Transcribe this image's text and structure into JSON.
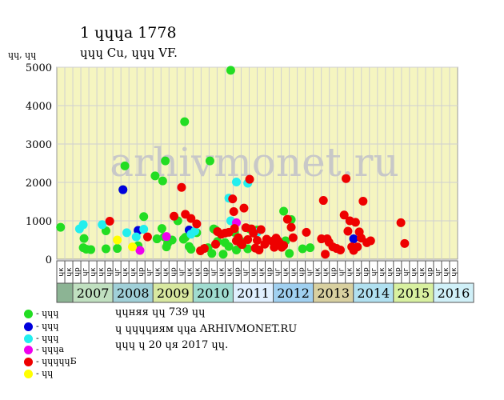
{
  "header": {
    "title": "1 ɥɥɥа 1778",
    "subtitle": "ɥɥɥ Cu, ɥɥɥ VF.",
    "y_unit": "ɥɥ, ɥɥ"
  },
  "watermark": "arhivmonet.ru",
  "colors": {
    "plot_bg": "#f5f5c0",
    "grid": "#d0d0d0",
    "watermark": "#c8c8c8",
    "first_column": "#8cb494",
    "green": "#22dd22",
    "blue": "#0000dd",
    "cyan": "#22eeee",
    "magenta": "#ee00ee",
    "red": "#ee0000",
    "yellow": "#ffff00"
  },
  "legend": [
    {
      "label": "- ɥɥɥ",
      "color": "#22dd22",
      "icon": "green-dot"
    },
    {
      "label": "- ɥɥɥ",
      "color": "#0000dd",
      "icon": "blue-dot"
    },
    {
      "label": "- ɥɥɥ",
      "color": "#22eeee",
      "icon": "cyan-dot"
    },
    {
      "label": "- ɥɥɥа",
      "color": "#ee00ee",
      "icon": "magenta-dot"
    },
    {
      "label": "- ɥɥɥɥɥБ",
      "color": "#ee0000",
      "icon": "red-dot"
    },
    {
      "label": "- ɥɥ",
      "color": "#ffff00",
      "icon": "yellow-dot"
    }
  ],
  "info": {
    "line1": "ɥɥняя ɥɥ 739 ɥɥ",
    "line2": "ɥ ɥɥɥɥиям ɥɥа ARHIVMONET.RU",
    "line3": "ɥɥɥ ɥ 20 ɥя 2017 ɥɥ."
  },
  "chart_data": {
    "type": "scatter",
    "ylim": [
      0,
      5000
    ],
    "yticks": [
      0,
      1000,
      2000,
      3000,
      4000,
      5000
    ],
    "xlim": [
      2006.0,
      2016.6
    ],
    "quarter_labels": [
      "ɥк",
      "ɥк",
      "ɥр",
      "ɥг",
      "ɥк",
      "ɥк",
      "ɥр",
      "ɥг",
      "ɥк",
      "ɥк",
      "ɥр",
      "ɥг",
      "ɥк",
      "ɥк",
      "ɥр",
      "ɥг",
      "ɥк",
      "ɥк",
      "ɥр",
      "ɥг",
      "ɥк",
      "ɥк",
      "ɥр",
      "ɥг",
      "ɥк",
      "ɥк",
      "ɥр",
      "ɥг",
      "ɥк",
      "ɥк",
      "ɥр",
      "ɥг",
      "ɥк",
      "ɥк",
      "ɥр",
      "ɥг",
      "ɥк",
      "ɥк",
      "ɥр",
      "ɥг",
      "ɥк",
      "ɥк",
      "ɥр",
      "ɥг",
      "ɥк",
      "ɥк",
      "ɥр",
      "ɥг",
      "ɥк",
      "ɥк"
    ],
    "years": [
      {
        "label": "2007",
        "color": "#c0e0c0"
      },
      {
        "label": "2008",
        "color": "#a0d0d8"
      },
      {
        "label": "2009",
        "color": "#d8e8a0"
      },
      {
        "label": "2010",
        "color": "#a0dcd0"
      },
      {
        "label": "2011",
        "color": "#e0f0ff"
      },
      {
        "label": "2012",
        "color": "#a0d0f0"
      },
      {
        "label": "2013",
        "color": "#d8d0a0"
      },
      {
        "label": "2014",
        "color": "#b0e0f0"
      },
      {
        "label": "2015",
        "color": "#d8f0a0"
      },
      {
        "label": "2016",
        "color": "#d0f0f8"
      }
    ],
    "series": [
      {
        "name": "- ɥɥɥ",
        "color": "#22dd22",
        "points": [
          [
            2006.1,
            830
          ],
          [
            2006.7,
            300
          ],
          [
            2006.72,
            540
          ],
          [
            2006.78,
            260
          ],
          [
            2006.9,
            250
          ],
          [
            2007.3,
            740
          ],
          [
            2007.3,
            270
          ],
          [
            2007.6,
            280
          ],
          [
            2007.75,
            1810
          ],
          [
            2007.8,
            2430
          ],
          [
            2008.15,
            350
          ],
          [
            2008.3,
            1110
          ],
          [
            2008.6,
            2170
          ],
          [
            2008.65,
            530
          ],
          [
            2008.78,
            800
          ],
          [
            2008.8,
            2040
          ],
          [
            2008.84,
            580
          ],
          [
            2008.87,
            2560
          ],
          [
            2008.9,
            320
          ],
          [
            2008.93,
            410
          ],
          [
            2009.05,
            500
          ],
          [
            2009.2,
            1000
          ],
          [
            2009.35,
            520
          ],
          [
            2009.38,
            3580
          ],
          [
            2009.4,
            570
          ],
          [
            2009.5,
            330
          ],
          [
            2009.55,
            260
          ],
          [
            2009.7,
            690
          ],
          [
            2010.0,
            300
          ],
          [
            2010.05,
            2560
          ],
          [
            2010.1,
            150
          ],
          [
            2010.15,
            790
          ],
          [
            2010.2,
            760
          ],
          [
            2010.25,
            460
          ],
          [
            2010.4,
            130
          ],
          [
            2010.45,
            430
          ],
          [
            2010.55,
            330
          ],
          [
            2010.6,
            4920
          ],
          [
            2010.7,
            700
          ],
          [
            2010.75,
            240
          ],
          [
            2010.85,
            480
          ],
          [
            2011.05,
            270
          ],
          [
            2011.1,
            790
          ],
          [
            2011.3,
            760
          ],
          [
            2011.85,
            440
          ],
          [
            2012.0,
            1250
          ],
          [
            2012.05,
            480
          ],
          [
            2012.15,
            150
          ],
          [
            2012.2,
            1030
          ],
          [
            2012.5,
            270
          ],
          [
            2012.7,
            300
          ]
        ]
      },
      {
        "name": "- ɥɥɥ",
        "color": "#0000dd",
        "points": [
          [
            2007.75,
            1810
          ],
          [
            2008.15,
            750
          ],
          [
            2009.5,
            760
          ],
          [
            2013.85,
            530
          ]
        ]
      },
      {
        "name": "- ɥɥɥ",
        "color": "#22eeee",
        "points": [
          [
            2006.6,
            790
          ],
          [
            2006.7,
            900
          ],
          [
            2007.2,
            900
          ],
          [
            2007.85,
            690
          ],
          [
            2008.1,
            580
          ],
          [
            2008.3,
            780
          ],
          [
            2009.55,
            650
          ],
          [
            2009.65,
            730
          ],
          [
            2010.55,
            1590
          ],
          [
            2010.6,
            1000
          ],
          [
            2010.75,
            2010
          ],
          [
            2011.05,
            1980
          ],
          [
            2011.3,
            700
          ]
        ]
      },
      {
        "name": "- ɥɥɥа",
        "color": "#ee00ee",
        "points": [
          [
            2008.2,
            230
          ],
          [
            2008.9,
            590
          ],
          [
            2010.75,
            950
          ]
        ]
      },
      {
        "name": "- ɥɥɥɥɥБ",
        "color": "#ee0000",
        "points": [
          [
            2007.4,
            990
          ],
          [
            2008.4,
            580
          ],
          [
            2009.1,
            1120
          ],
          [
            2009.3,
            1870
          ],
          [
            2009.4,
            1170
          ],
          [
            2009.55,
            1060
          ],
          [
            2009.7,
            920
          ],
          [
            2009.8,
            220
          ],
          [
            2009.9,
            280
          ],
          [
            2010.2,
            390
          ],
          [
            2010.25,
            720
          ],
          [
            2010.35,
            650
          ],
          [
            2010.45,
            680
          ],
          [
            2010.55,
            700
          ],
          [
            2010.65,
            1570
          ],
          [
            2010.68,
            1240
          ],
          [
            2010.7,
            800
          ],
          [
            2010.75,
            480
          ],
          [
            2010.8,
            560
          ],
          [
            2010.85,
            430
          ],
          [
            2010.9,
            380
          ],
          [
            2010.95,
            1330
          ],
          [
            2011.0,
            820
          ],
          [
            2011.05,
            510
          ],
          [
            2011.1,
            2080
          ],
          [
            2011.15,
            790
          ],
          [
            2011.2,
            680
          ],
          [
            2011.25,
            290
          ],
          [
            2011.3,
            490
          ],
          [
            2011.35,
            240
          ],
          [
            2011.4,
            770
          ],
          [
            2011.5,
            390
          ],
          [
            2011.55,
            520
          ],
          [
            2011.7,
            470
          ],
          [
            2011.75,
            310
          ],
          [
            2011.8,
            550
          ],
          [
            2011.85,
            480
          ],
          [
            2011.9,
            410
          ],
          [
            2011.95,
            310
          ],
          [
            2012.0,
            360
          ],
          [
            2012.1,
            1040
          ],
          [
            2012.2,
            830
          ],
          [
            2012.25,
            560
          ],
          [
            2012.6,
            700
          ],
          [
            2013.0,
            530
          ],
          [
            2013.05,
            1530
          ],
          [
            2013.1,
            130
          ],
          [
            2013.15,
            530
          ],
          [
            2013.2,
            440
          ],
          [
            2013.3,
            320
          ],
          [
            2013.4,
            280
          ],
          [
            2013.5,
            240
          ],
          [
            2013.6,
            1150
          ],
          [
            2013.65,
            2100
          ],
          [
            2013.7,
            730
          ],
          [
            2013.75,
            1000
          ],
          [
            2013.8,
            320
          ],
          [
            2013.85,
            230
          ],
          [
            2013.9,
            960
          ],
          [
            2013.95,
            320
          ],
          [
            2014.0,
            710
          ],
          [
            2014.05,
            550
          ],
          [
            2014.1,
            1510
          ],
          [
            2014.2,
            430
          ],
          [
            2014.3,
            480
          ],
          [
            2015.1,
            950
          ],
          [
            2015.2,
            410
          ]
        ]
      },
      {
        "name": "- ɥɥ",
        "color": "#ffff00",
        "points": [
          [
            2007.6,
            500
          ],
          [
            2008.0,
            320
          ]
        ]
      }
    ]
  }
}
